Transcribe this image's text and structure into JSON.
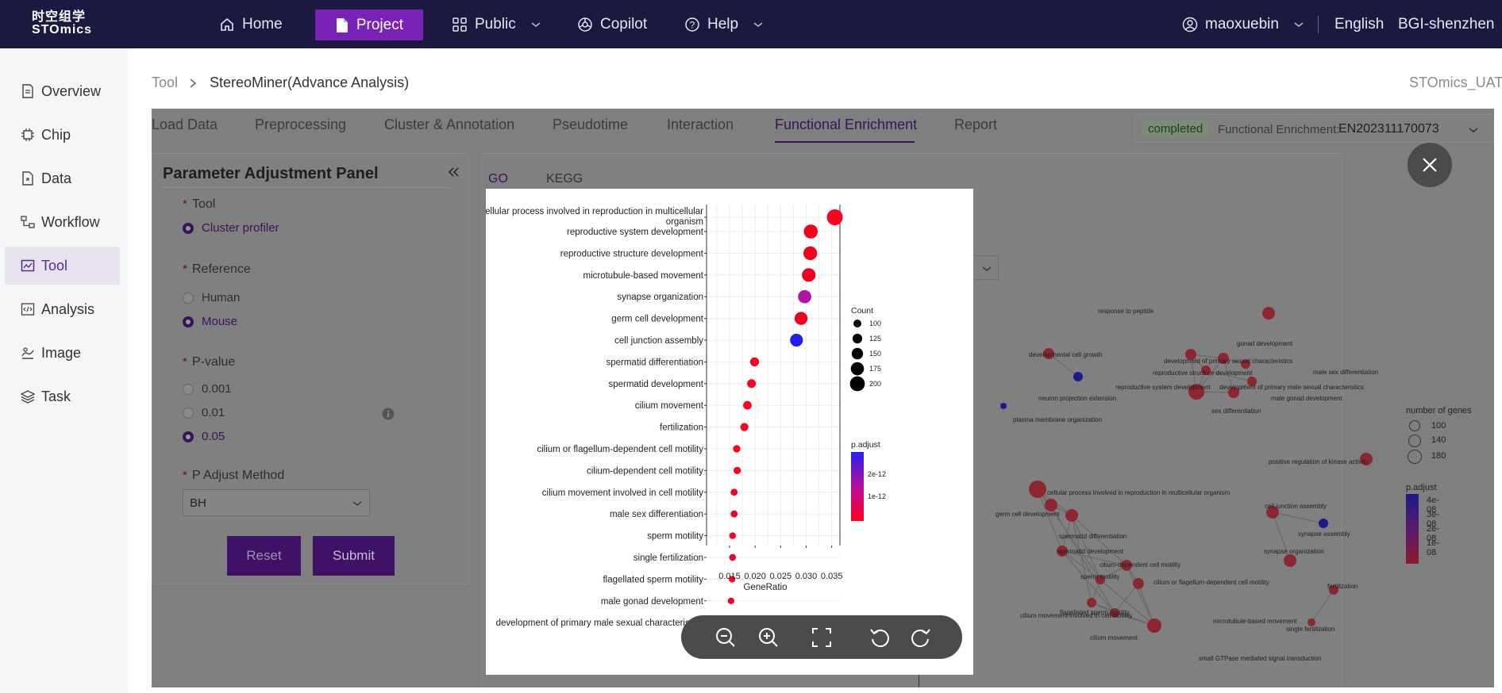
{
  "header": {
    "logo_line1": "时空组学",
    "logo_line2": "STOmics",
    "nav": [
      {
        "label": "Home",
        "icon": "home-icon"
      },
      {
        "label": "Project",
        "icon": "file-icon"
      },
      {
        "label": "Public",
        "icon": "grid-icon"
      },
      {
        "label": "Copilot",
        "icon": "copilot-icon"
      },
      {
        "label": "Help",
        "icon": "help-icon"
      }
    ],
    "user": "maoxuebin",
    "language": "English",
    "region": "BGI-shenzhen"
  },
  "sidebar": {
    "items": [
      {
        "label": "Overview",
        "icon": "document-icon"
      },
      {
        "label": "Chip",
        "icon": "chip-icon"
      },
      {
        "label": "Data",
        "icon": "data-file-icon"
      },
      {
        "label": "Workflow",
        "icon": "workflow-icon"
      },
      {
        "label": "Tool",
        "icon": "tool-icon"
      },
      {
        "label": "Analysis",
        "icon": "code-icon"
      },
      {
        "label": "Image",
        "icon": "image-icon"
      },
      {
        "label": "Task",
        "icon": "layers-icon"
      }
    ]
  },
  "breadcrumb": {
    "root": "Tool",
    "current": "StereoMiner(Advance Analysis)",
    "env": "STOmics_UAT"
  },
  "tabs": [
    "Load Data",
    "Preprocessing",
    "Cluster & Annotation",
    "Pseudotime",
    "Interaction",
    "Functional Enrichment",
    "Report"
  ],
  "status": {
    "badge": "completed",
    "label": "Functional Enrichment:",
    "value": "EN202311170073"
  },
  "param_panel": {
    "title": "Parameter Adjustment Panel",
    "tool_label": "Tool",
    "tool_option": "Cluster profiler",
    "reference_label": "Reference",
    "reference_options": [
      "Human",
      "Mouse"
    ],
    "pvalue_label": "P-value",
    "pvalue_options": [
      "0.001",
      "0.01",
      "0.05"
    ],
    "padjust_label": "P Adjust Method",
    "padjust_value": "BH",
    "reset": "Reset",
    "submit": "Submit"
  },
  "result_tabs": [
    "GO",
    "KEGG"
  ],
  "accent": "#7b22b6",
  "chart_data": {
    "type": "scatter",
    "xlabel": "GeneRatio",
    "x_ticks": [
      "0.015",
      "0.020",
      "0.025",
      "0.030",
      "0.035"
    ],
    "xlim": [
      0.0105,
      0.0366
    ],
    "categories": [
      "cellular process involved in reproduction in multicellular organism",
      "reproductive system development",
      "reproductive structure development",
      "microtubule-based movement",
      "synapse organization",
      "germ cell development",
      "cell junction assembly",
      "spermatid differentiation",
      "spermatid development",
      "cilium movement",
      "fertilization",
      "cilium or flagellum-dependent cell motility",
      "cilium-dependent cell motility",
      "cilium movement involved in cell motility",
      "male sex differentiation",
      "sperm motility",
      "single fertilization",
      "flagellated sperm motility",
      "male gonad development",
      "development of primary male sexual characteristics"
    ],
    "x": [
      0.0356,
      0.0309,
      0.0308,
      0.0305,
      0.0297,
      0.029,
      0.0281,
      0.0199,
      0.0193,
      0.0185,
      0.0179,
      0.0164,
      0.0165,
      0.0159,
      0.0159,
      0.0156,
      0.0156,
      0.0155,
      0.0153,
      0.0151
    ],
    "count": [
      205,
      180,
      178,
      176,
      172,
      168,
      166,
      118,
      114,
      112,
      106,
      96,
      96,
      92,
      92,
      88,
      88,
      88,
      86,
      84
    ],
    "padj_color": [
      "#ff0022",
      "#f4001a",
      "#f2001c",
      "#ef0020",
      "#b312a8",
      "#f20020",
      "#1f1eea",
      "#ff0020",
      "#ff0020",
      "#ff0020",
      "#fa0022",
      "#ff0020",
      "#ff0020",
      "#f4001e",
      "#ee0026",
      "#ff0020",
      "#ea0030",
      "#ff0020",
      "#f20026",
      "#ee002a"
    ],
    "legend_count_title": "Count",
    "legend_count": [
      "100",
      "125",
      "150",
      "175",
      "200"
    ],
    "legend_padj_title": "p.adjust",
    "legend_padj_ticks": [
      "2e-12",
      "1e-12"
    ]
  },
  "network": {
    "labels": [
      "response to peptide",
      "developmental cell growth",
      "gonad development",
      "development of primary sexual characteristics",
      "reproductive structure development",
      "male sex differentiation",
      "reproductive system development",
      "development of primary male sexual characteristics",
      "male gonad development",
      "neuron projection extension",
      "sex differentiation",
      "plasma membrane organization",
      "positive regulation of kinase activity",
      "cellular process involved in reproduction in multicellular organism",
      "germ cell development",
      "spermatid differentiation",
      "cell junction assembly",
      "synapse assembly",
      "spermatid development",
      "cilium-dependent cell motility",
      "synapse organization",
      "sperm motility",
      "cilium or flagellum-dependent cell motility",
      "flagellated sperm motility",
      "fertilization",
      "cilium movement involved in cell motility",
      "microtubule-based movement",
      "single fertilization",
      "cilium movement",
      "small GTPase mediated signal transduction"
    ],
    "legend_genes_title": "number of genes",
    "legend_genes": [
      "100",
      "140",
      "180"
    ],
    "legend_padj_title": "p.adjust",
    "legend_padj": [
      "4e-08",
      "3e-08",
      "2e-08",
      "1e-08"
    ]
  }
}
